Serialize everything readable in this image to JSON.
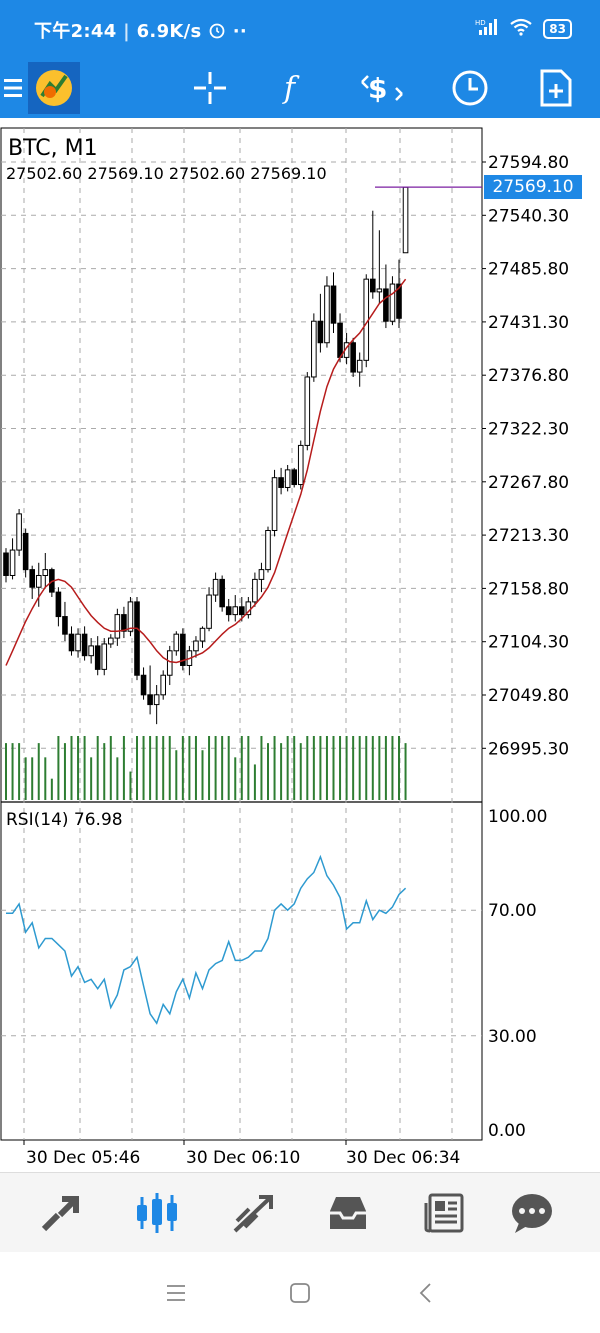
{
  "status_bar": {
    "time": "下午2:44",
    "speed": "6.9K/s",
    "battery": "83"
  },
  "toolbar": {
    "icons": [
      "menu-icon",
      "app-logo-icon",
      "crosshair-icon",
      "function-icon",
      "trade-icon",
      "clock-icon",
      "add-document-icon"
    ]
  },
  "chart": {
    "symbol_timeframe": "BTC, M1",
    "ohlc_text": "27502.60 27569.10 27502.60 27569.10",
    "bid_price": "27569.10",
    "price_labels": [
      "27594.80",
      "27540.30",
      "27485.80",
      "27431.30",
      "27376.80",
      "27322.30",
      "27267.80",
      "27213.30",
      "27158.80",
      "27104.30",
      "27049.80",
      "26995.30"
    ],
    "rsi_label": "RSI(14) 76.98",
    "rsi_levels": [
      "100.00",
      "70.00",
      "30.00",
      "0.00"
    ],
    "time_labels": [
      "30 Dec 05:46",
      "30 Dec 06:10",
      "30 Dec 06:34"
    ],
    "colors": {
      "candle": "#000000",
      "ma": "#B71C1C",
      "volume": "#2E7D32",
      "rsi": "#2E9AD0",
      "grid": "#AAAAAA",
      "bid": "#1E88E5"
    }
  },
  "chart_data": [
    {
      "type": "candlestick",
      "title": "BTC, M1",
      "yaxis_ticks": [
        27594.8,
        27540.3,
        27485.8,
        27431.3,
        27376.8,
        27322.3,
        27267.8,
        27213.3,
        27158.8,
        27104.3,
        27049.8,
        26995.3
      ],
      "candles": [
        [
          27195,
          27200,
          27165,
          27172
        ],
        [
          27172,
          27210,
          27168,
          27198
        ],
        [
          27198,
          27240,
          27192,
          27235
        ],
        [
          27215,
          27220,
          27170,
          27178
        ],
        [
          27178,
          27182,
          27148,
          27160
        ],
        [
          27160,
          27185,
          27140,
          27172
        ],
        [
          27172,
          27195,
          27160,
          27178
        ],
        [
          27178,
          27180,
          27150,
          27155
        ],
        [
          27155,
          27160,
          27120,
          27130
        ],
        [
          27130,
          27145,
          27105,
          27112
        ],
        [
          27112,
          27120,
          27090,
          27095
        ],
        [
          27095,
          27118,
          27088,
          27112
        ],
        [
          27112,
          27120,
          27085,
          27090
        ],
        [
          27090,
          27108,
          27082,
          27100
        ],
        [
          27100,
          27110,
          27070,
          27076
        ],
        [
          27076,
          27108,
          27070,
          27102
        ],
        [
          27102,
          27112,
          27098,
          27108
        ],
        [
          27108,
          27138,
          27100,
          27132
        ],
        [
          27132,
          27140,
          27108,
          27115
        ],
        [
          27115,
          27150,
          27110,
          27145
        ],
        [
          27145,
          27150,
          27065,
          27070
        ],
        [
          27070,
          27078,
          27045,
          27050
        ],
        [
          27050,
          27080,
          27030,
          27040
        ],
        [
          27040,
          27060,
          27020,
          27050
        ],
        [
          27050,
          27075,
          27045,
          27070
        ],
        [
          27070,
          27100,
          27060,
          27095
        ],
        [
          27095,
          27115,
          27090,
          27112
        ],
        [
          27112,
          27118,
          27075,
          27080
        ],
        [
          27080,
          27100,
          27070,
          27095
        ],
        [
          27095,
          27110,
          27088,
          27105
        ],
        [
          27105,
          27120,
          27098,
          27118
        ],
        [
          27118,
          27160,
          27115,
          27152
        ],
        [
          27152,
          27175,
          27145,
          27168
        ],
        [
          27168,
          27172,
          27135,
          27140
        ],
        [
          27140,
          27148,
          27125,
          27132
        ],
        [
          27132,
          27152,
          27125,
          27140
        ],
        [
          27140,
          27150,
          27125,
          27132
        ],
        [
          27132,
          27150,
          27128,
          27145
        ],
        [
          27145,
          27175,
          27140,
          27168
        ],
        [
          27168,
          27185,
          27155,
          27178
        ],
        [
          27178,
          27222,
          27175,
          27218
        ],
        [
          27218,
          27280,
          27212,
          27272
        ],
        [
          27272,
          27282,
          27255,
          27262
        ],
        [
          27262,
          27285,
          27258,
          27280
        ],
        [
          27280,
          27282,
          27262,
          27265
        ],
        [
          27265,
          27310,
          27260,
          27305
        ],
        [
          27305,
          27380,
          27300,
          27375
        ],
        [
          27375,
          27440,
          27370,
          27432
        ],
        [
          27432,
          27460,
          27400,
          27410
        ],
        [
          27410,
          27478,
          27405,
          27468
        ],
        [
          27468,
          27482,
          27420,
          27430
        ],
        [
          27430,
          27440,
          27390,
          27395
        ],
        [
          27395,
          27420,
          27388,
          27410
        ],
        [
          27410,
          27415,
          27375,
          27380
        ],
        [
          27380,
          27400,
          27365,
          27392
        ],
        [
          27392,
          27480,
          27385,
          27475
        ],
        [
          27475,
          27545,
          27455,
          27462
        ],
        [
          27462,
          27525,
          27450,
          27465
        ],
        [
          27465,
          27490,
          27425,
          27432
        ],
        [
          27432,
          27478,
          27428,
          27470
        ],
        [
          27470,
          27495,
          27425,
          27435
        ],
        [
          27502,
          27569,
          27502,
          27569
        ]
      ],
      "ma": [
        27080,
        27095,
        27110,
        27125,
        27138,
        27150,
        27160,
        27166,
        27168,
        27166,
        27160,
        27150,
        27140,
        27131,
        27124,
        27118,
        27115,
        27115,
        27116,
        27118,
        27118,
        27112,
        27104,
        27095,
        27088,
        27084,
        27083,
        27085,
        27087,
        27090,
        27093,
        27098,
        27105,
        27112,
        27118,
        27122,
        27128,
        27135,
        27142,
        27150,
        27160,
        27175,
        27195,
        27215,
        27235,
        27255,
        27280,
        27310,
        27340,
        27365,
        27383,
        27395,
        27405,
        27413,
        27420,
        27430,
        27440,
        27450,
        27456,
        27460,
        27466,
        27475
      ]
    },
    {
      "type": "line",
      "title": "RSI(14) 76.98",
      "ylim": [
        0,
        100
      ],
      "levels": [
        70,
        30
      ],
      "values": [
        69,
        69,
        72,
        63,
        66,
        58,
        61,
        61,
        59,
        57,
        49,
        52,
        47,
        48,
        45,
        48,
        39,
        43,
        51,
        52,
        55,
        46,
        37,
        34,
        40,
        37,
        44,
        48,
        42,
        50,
        45,
        51,
        53,
        54,
        60,
        54,
        54,
        55,
        57,
        57,
        61,
        70,
        72,
        70,
        72,
        77,
        80,
        82,
        87,
        81,
        78,
        74,
        64,
        66,
        66,
        73,
        67,
        70,
        69,
        71,
        75,
        77
      ]
    },
    {
      "type": "bar",
      "title": "Volume",
      "values": [
        8,
        8,
        8,
        6,
        6,
        8,
        6,
        3,
        9,
        8,
        9,
        9,
        9,
        6,
        9,
        8,
        9,
        6,
        9,
        4,
        9,
        9,
        9,
        9,
        9,
        9,
        7,
        9,
        9,
        9,
        7,
        9,
        9,
        9,
        9,
        6,
        9,
        9,
        5,
        9,
        8,
        9,
        8,
        9,
        9,
        8,
        9,
        9,
        9,
        9,
        9,
        9,
        9,
        9,
        9,
        9,
        9,
        9,
        9,
        9,
        9,
        8
      ]
    }
  ]
}
